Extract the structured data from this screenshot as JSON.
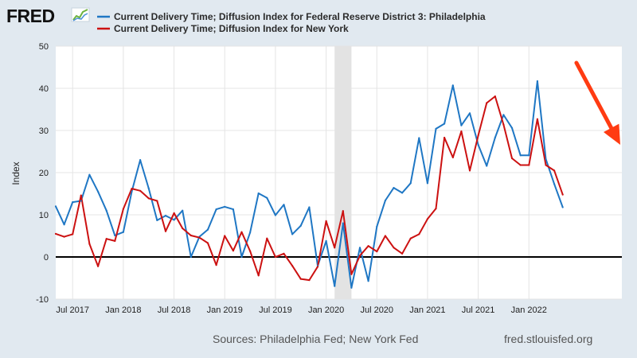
{
  "logo": {
    "text": "FRED"
  },
  "footer": {
    "sources": "Sources: Philadelphia Fed; New York Fed",
    "site": "fred.stlouisfed.org"
  },
  "colors": {
    "background": "#e1e9f0",
    "plot": "#ffffff",
    "grid": "#e4e4e4",
    "recession": "#e3e3e3",
    "series1": "#1f77c4",
    "series2": "#cc1111",
    "arrow": "#ff3b12"
  },
  "chart_data": {
    "type": "line",
    "ylabel": "Index",
    "ylim": [
      -10,
      50
    ],
    "yticks": [
      -10,
      0,
      10,
      20,
      30,
      40,
      50
    ],
    "xlim": [
      "2017-05",
      "2022-12"
    ],
    "xticks": [
      {
        "date": "2017-07",
        "label": "Jul 2017"
      },
      {
        "date": "2018-01",
        "label": "Jan 2018"
      },
      {
        "date": "2018-07",
        "label": "Jul 2018"
      },
      {
        "date": "2019-01",
        "label": "Jan 2019"
      },
      {
        "date": "2019-07",
        "label": "Jul 2019"
      },
      {
        "date": "2020-01",
        "label": "Jan 2020"
      },
      {
        "date": "2020-07",
        "label": "Jul 2020"
      },
      {
        "date": "2021-01",
        "label": "Jan 2021"
      },
      {
        "date": "2021-07",
        "label": "Jul 2021"
      },
      {
        "date": "2022-01",
        "label": "Jan 2022"
      }
    ],
    "recession": {
      "start": "2020-02",
      "end": "2020-04"
    },
    "zero_line": 0,
    "grid": true,
    "legend": "top",
    "annotation": {
      "type": "arrow",
      "direction": "down",
      "from": "2022-07",
      "to": "2022-12"
    },
    "series": [
      {
        "name": "Current Delivery Time; Diffusion Index for Federal Reserve District 3: Philadelphia",
        "start": "2017-05",
        "values": [
          12,
          7.7,
          13,
          13.3,
          19.5,
          15.5,
          11,
          5.1,
          5.9,
          15.5,
          23,
          16.3,
          8.7,
          9.8,
          8.8,
          11,
          0,
          4.8,
          6.5,
          11.3,
          11.9,
          11.3,
          0,
          5.8,
          15.1,
          14,
          9.9,
          12.4,
          5.4,
          7.4,
          11.8,
          -2.1,
          3.8,
          -6.9,
          8,
          -7.3,
          2.2,
          -5.7,
          7.2,
          13.4,
          16.4,
          15.2,
          17.5,
          28.2,
          17.5,
          30.4,
          31.6,
          40.7,
          31.2,
          34.1,
          26.6,
          21.6,
          28.3,
          33.7,
          30.6,
          24.1,
          24.1,
          41.7,
          23.2,
          17.3,
          11.8
        ]
      },
      {
        "name": "Current Delivery Time; Diffusion Index for New York",
        "start": "2017-05",
        "values": [
          5.5,
          4.8,
          5.4,
          14.6,
          3.1,
          -2.2,
          4.3,
          3.8,
          11.4,
          16.2,
          15.7,
          13.9,
          13.3,
          6.1,
          10.4,
          6.8,
          5.1,
          4.6,
          3.3,
          -1.9,
          5,
          1.5,
          5.9,
          1.4,
          -4.4,
          4.4,
          0,
          0.8,
          -2.1,
          -5.2,
          -5.5,
          -2.3,
          8.5,
          2.2,
          10.9,
          -4.1,
          0.3,
          2.6,
          1.3,
          5,
          2.2,
          0.8,
          4.4,
          5.4,
          9,
          11.5,
          28.3,
          23.6,
          29.8,
          20.5,
          28.8,
          36.5,
          38.1,
          31.4,
          23.4,
          21.8,
          21.8,
          32.7,
          21.8,
          20.5,
          14.8
        ]
      }
    ]
  }
}
